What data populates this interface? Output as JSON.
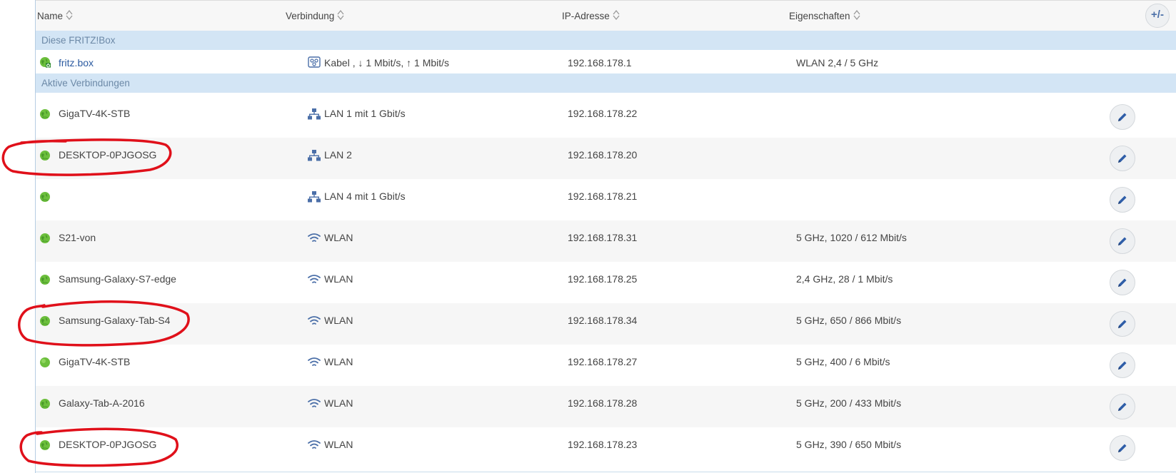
{
  "columns": {
    "name": "Name",
    "connection": "Verbindung",
    "ip": "IP-Adresse",
    "properties": "Eigenschaften"
  },
  "add_button_label": "+/-",
  "groups": {
    "this_box": "Diese FRITZ!Box",
    "active": "Aktive Verbindungen"
  },
  "fritzbox_row": {
    "name": "fritz.box",
    "connection": "Kabel , ↓ 1 Mbit/s, ↑ 1 Mbit/s",
    "ip": "192.168.178.1",
    "properties": "WLAN 2,4 / 5 GHz"
  },
  "rows": [
    {
      "name": "GigaTV-4K-STB",
      "connection": "LAN 1 mit 1 Gbit/s",
      "conn_type": "lan",
      "ip": "192.168.178.22",
      "properties": "",
      "icon": "globe"
    },
    {
      "name": "DESKTOP-0PJGOSG",
      "connection": "LAN 2",
      "conn_type": "lan",
      "ip": "192.168.178.20",
      "properties": "",
      "icon": "globe"
    },
    {
      "name": "",
      "connection": "LAN 4 mit 1 Gbit/s",
      "conn_type": "lan",
      "ip": "192.168.178.21",
      "properties": "",
      "icon": "globe"
    },
    {
      "name": "S21-von",
      "connection": "WLAN",
      "conn_type": "wlan",
      "ip": "192.168.178.31",
      "properties": "5 GHz, 1020 / 612 Mbit/s",
      "icon": "globe"
    },
    {
      "name": "Samsung-Galaxy-S7-edge",
      "connection": "WLAN",
      "conn_type": "wlan",
      "ip": "192.168.178.25",
      "properties": "2,4 GHz, 28 / 1 Mbit/s",
      "icon": "globe"
    },
    {
      "name": "Samsung-Galaxy-Tab-S4",
      "connection": "WLAN",
      "conn_type": "wlan",
      "ip": "192.168.178.34",
      "properties": "5 GHz, 650 / 866 Mbit/s",
      "icon": "globe"
    },
    {
      "name": "GigaTV-4K-STB",
      "connection": "WLAN",
      "conn_type": "wlan",
      "ip": "192.168.178.27",
      "properties": "5 GHz, 400 / 6 Mbit/s",
      "icon": "dot"
    },
    {
      "name": "Galaxy-Tab-A-2016",
      "connection": "WLAN",
      "conn_type": "wlan",
      "ip": "192.168.178.28",
      "properties": "5 GHz, 200 / 433 Mbit/s",
      "icon": "globe"
    },
    {
      "name": "DESKTOP-0PJGOSG",
      "connection": "WLAN",
      "conn_type": "wlan",
      "ip": "192.168.178.23",
      "properties": "5 GHz, 390 / 650 Mbit/s",
      "icon": "globe"
    }
  ],
  "colors": {
    "accent": "#2b5aa0",
    "group_bg": "#d3e5f5",
    "online_green": "#6cbf3c",
    "annotation_red": "#e0101a"
  }
}
